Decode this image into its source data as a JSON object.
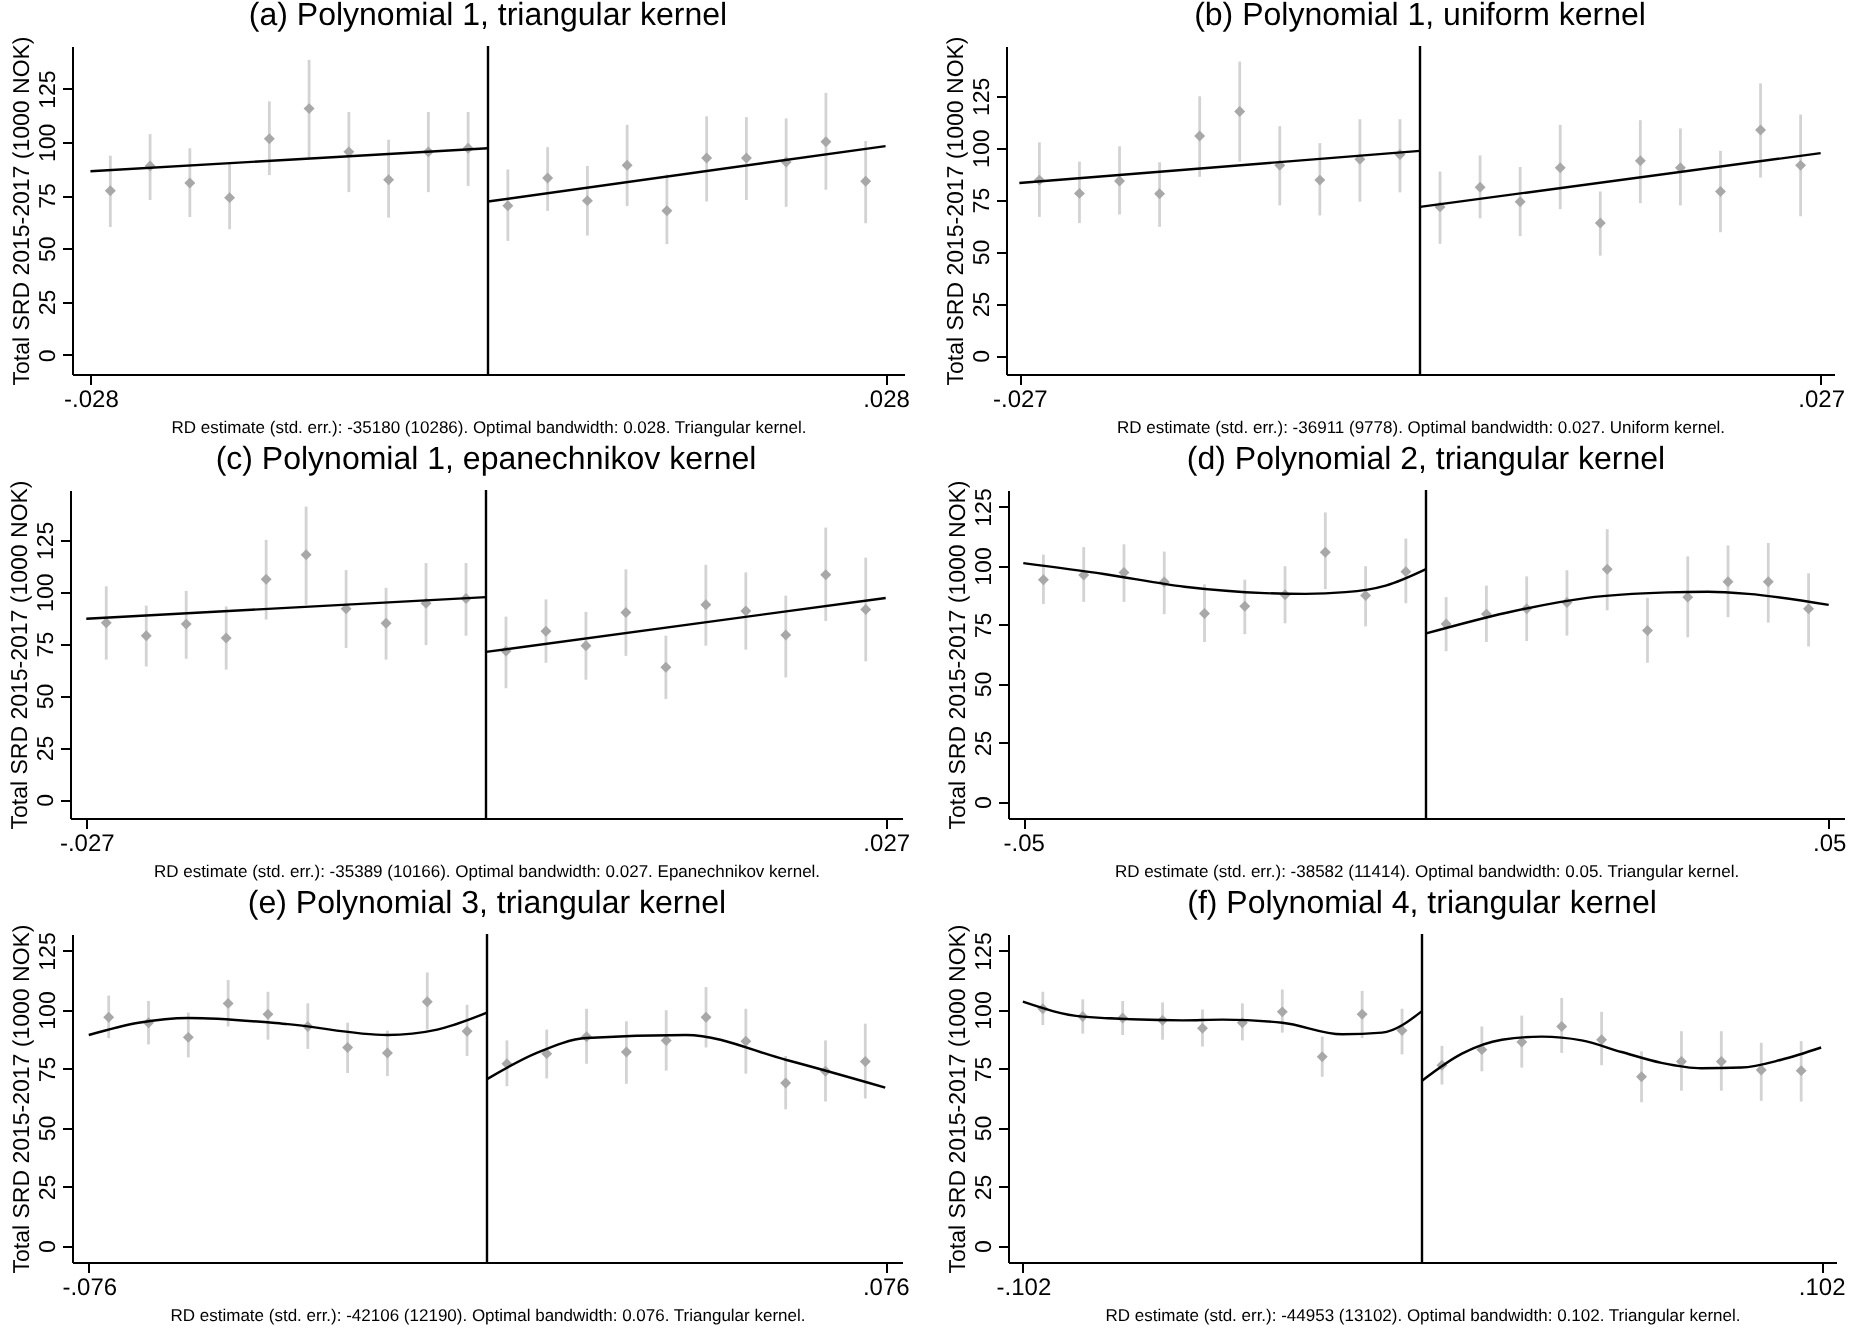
{
  "chart_data": [
    {
      "type": "scatter",
      "title": "(a) Polynomial 1, triangular kernel",
      "ylabel": "Total SRD 2015-2017 (1000 NOK)",
      "annotations": [
        "RD estimate (std. err.): -35180 (10286). Optimal bandwidth: 0.028. Triangular kernel."
      ],
      "xlim": [
        -0.0293,
        0.0293
      ],
      "xticks": [
        {
          "value": -0.028,
          "label": "-.028"
        },
        {
          "value": 0.028,
          "label": ".028"
        }
      ],
      "ylim": [
        -9,
        145
      ],
      "yticks": [
        0,
        25,
        50,
        75,
        100,
        125
      ],
      "ref_lines": [
        {
          "axis": "x",
          "value": 0,
          "color": "#000000"
        }
      ],
      "series": [
        {
          "type": "scatter",
          "color": "#a8a8a8",
          "marker": "diamond",
          "x": [
            -0.0266,
            -0.0238,
            -0.021,
            -0.0182,
            -0.0154,
            -0.0126,
            -0.0098,
            -0.007,
            -0.0042,
            -0.0014,
            0.0014,
            0.0042,
            0.007,
            0.0098,
            0.0126,
            0.0154,
            0.0182,
            0.021,
            0.0238,
            0.0266
          ],
          "values": [
            77,
            88.7,
            80.7,
            73.8,
            101.5,
            115.6,
            95.3,
            82.2,
            95.3,
            97,
            70,
            83,
            72.4,
            89,
            67.6,
            92.4,
            92.4,
            90.5,
            100,
            81.5
          ],
          "errors": [
            [
              60,
              93.5
            ],
            [
              72.7,
              103.6
            ],
            [
              64.7,
              97
            ],
            [
              59,
              90
            ],
            [
              84.4,
              119
            ],
            [
              92,
              138.5
            ],
            [
              76.4,
              114
            ],
            [
              64.4,
              101
            ],
            [
              76.4,
              114
            ],
            [
              79.3,
              114
            ],
            [
              53.5,
              87
            ],
            [
              67.6,
              97.5
            ],
            [
              56,
              88.7
            ],
            [
              69.8,
              108
            ],
            [
              52,
              84.7
            ],
            [
              72,
              112
            ],
            [
              72.7,
              111.6
            ],
            [
              69.5,
              111
            ],
            [
              77.5,
              123
            ],
            [
              61.8,
              100.4
            ]
          ]
        },
        {
          "type": "line",
          "marker": "none",
          "color": "#000000",
          "x": [
            -0.028,
            0
          ],
          "values": [
            86.2,
            97
          ]
        },
        {
          "type": "line",
          "marker": "none",
          "color": "#000000",
          "x": [
            0,
            0.028
          ],
          "values": [
            72,
            98
          ]
        }
      ]
    },
    {
      "type": "scatter",
      "title": "(b) Polynomial 1, uniform kernel",
      "ylabel": "Total SRD 2015-2017 (1000 NOK)",
      "annotations": [
        "RD estimate (std. err.): -36911 (9778). Optimal bandwidth: 0.027. Uniform kernel."
      ],
      "xlim": [
        -0.0279,
        0.0279
      ],
      "xticks": [
        {
          "value": -0.027,
          "label": "-.027"
        },
        {
          "value": 0.027,
          "label": ".027"
        }
      ],
      "ylim": [
        -9,
        149
      ],
      "yticks": [
        0,
        25,
        50,
        75,
        100,
        125
      ],
      "ref_lines": [
        {
          "axis": "x",
          "value": 0,
          "color": "#000000"
        }
      ],
      "series": [
        {
          "type": "scatter",
          "color": "#a8a8a8",
          "marker": "diamond",
          "x": [
            -0.02565,
            -0.02295,
            -0.02025,
            -0.01755,
            -0.01485,
            -0.01215,
            -0.00945,
            -0.00675,
            -0.00405,
            -0.00135,
            0.00135,
            0.00405,
            0.00675,
            0.00945,
            0.01215,
            0.01485,
            0.01755,
            0.02025,
            0.02295,
            0.02565
          ],
          "values": [
            84.4,
            78,
            84,
            77.8,
            105.6,
            117.4,
            91.5,
            84.4,
            94.4,
            96.7,
            71.5,
            81,
            74,
            90.4,
            63.7,
            93.7,
            90.4,
            78.9,
            108.5,
            91.5
          ],
          "errors": [
            [
              66.7,
              102.6
            ],
            [
              63.7,
              93.3
            ],
            [
              67.8,
              100.7
            ],
            [
              61.9,
              93
            ],
            [
              86,
              124.8
            ],
            [
              93.3,
              141.5
            ],
            [
              72.2,
              110.4
            ],
            [
              67.4,
              102.2
            ],
            [
              74,
              113.7
            ],
            [
              78.5,
              113.7
            ],
            [
              53.7,
              88.5
            ],
            [
              66,
              96.3
            ],
            [
              57.4,
              90.7
            ],
            [
              70.4,
              111
            ],
            [
              48,
              78.9
            ],
            [
              73.3,
              113.3
            ],
            [
              72.2,
              109.3
            ],
            [
              59.3,
              98.5
            ],
            [
              85.6,
              131
            ],
            [
              67,
              116
            ]
          ]
        },
        {
          "type": "line",
          "marker": "none",
          "color": "#000000",
          "x": [
            -0.027,
            0
          ],
          "values": [
            83,
            98.5
          ]
        },
        {
          "type": "line",
          "marker": "none",
          "color": "#000000",
          "x": [
            0,
            0.027
          ],
          "values": [
            71.5,
            97.4
          ]
        }
      ]
    },
    {
      "type": "scatter",
      "title": "(c) Polynomial 1, epanechnikov kernel",
      "ylabel": "Total SRD 2015-2017 (1000 NOK)",
      "annotations": [
        "RD estimate (std. err.): -35389 (10166). Optimal bandwidth: 0.027. Epanechnikov kernel."
      ],
      "xlim": [
        -0.0281,
        0.0281
      ],
      "xticks": [
        {
          "value": -0.027,
          "label": "-.027"
        },
        {
          "value": 0.027,
          "label": ".027"
        }
      ],
      "ylim": [
        -9,
        149
      ],
      "yticks": [
        0,
        25,
        50,
        75,
        100,
        125
      ],
      "ref_lines": [
        {
          "axis": "x",
          "value": 0,
          "color": "#000000"
        }
      ],
      "series": [
        {
          "type": "scatter",
          "color": "#a8a8a8",
          "marker": "diamond",
          "x": [
            -0.02565,
            -0.02295,
            -0.02025,
            -0.01755,
            -0.01485,
            -0.01215,
            -0.00945,
            -0.00675,
            -0.00405,
            -0.00135,
            0.00135,
            0.00405,
            0.00675,
            0.00945,
            0.01215,
            0.01485,
            0.01755,
            0.02025,
            0.02295,
            0.02565
          ],
          "values": [
            85,
            78.8,
            84.4,
            77.7,
            106,
            117.8,
            91.8,
            84.8,
            94.4,
            96.7,
            71.4,
            81,
            74,
            90,
            63.6,
            93.7,
            90.7,
            79.2,
            108.2,
            91.4
          ],
          "errors": [
            [
              67.3,
              102.6
            ],
            [
              64,
              93.3
            ],
            [
              67.7,
              100.4
            ],
            [
              62.5,
              92.9
            ],
            [
              86.6,
              125
            ],
            [
              93.7,
              141
            ],
            [
              72.9,
              110.4
            ],
            [
              67.3,
              101.9
            ],
            [
              74.3,
              113.8
            ],
            [
              78.8,
              113.8
            ],
            [
              53.5,
              88
            ],
            [
              65.8,
              96.3
            ],
            [
              57.6,
              90.3
            ],
            [
              69.1,
              110.8
            ],
            [
              48.3,
              78.8
            ],
            [
              74,
              113
            ],
            [
              72.1,
              109.3
            ],
            [
              58.7,
              98.1
            ],
            [
              85.9,
              130.9
            ],
            [
              66.5,
              116.4
            ]
          ]
        },
        {
          "type": "line",
          "marker": "none",
          "color": "#000000",
          "x": [
            -0.027,
            0
          ],
          "values": [
            87,
            97.4
          ]
        },
        {
          "type": "line",
          "marker": "none",
          "color": "#000000",
          "x": [
            0,
            0.027
          ],
          "values": [
            71,
            97
          ]
        }
      ]
    },
    {
      "type": "scatter",
      "title": "(d) Polynomial 2, triangular kernel",
      "ylabel": "Total SRD 2015-2017 (1000 NOK)",
      "annotations": [
        "RD estimate (std. err.): -38582 (11414). Optimal bandwidth: 0.05. Triangular kernel."
      ],
      "xlim": [
        -0.0519,
        0.0519
      ],
      "xticks": [
        {
          "value": -0.05,
          "label": "-.05"
        },
        {
          "value": 0.05,
          "label": ".05"
        }
      ],
      "ylim": [
        -7,
        132
      ],
      "yticks": [
        0,
        25,
        50,
        75,
        100,
        125
      ],
      "ref_lines": [
        {
          "axis": "x",
          "value": 0,
          "color": "#000000"
        }
      ],
      "series": [
        {
          "type": "scatter",
          "color": "#a8a8a8",
          "marker": "diamond",
          "x": [
            -0.0475,
            -0.0425,
            -0.0375,
            -0.0325,
            -0.0275,
            -0.0225,
            -0.0175,
            -0.0125,
            -0.0075,
            -0.0025,
            0.0025,
            0.0075,
            0.0125,
            0.0175,
            0.0225,
            0.0275,
            0.0325,
            0.0375,
            0.0425,
            0.0475
          ],
          "values": [
            94,
            96,
            97,
            93,
            79.7,
            82.7,
            87.6,
            105.6,
            87.3,
            97.4,
            75.2,
            79.4,
            81.7,
            84.3,
            98.4,
            72.5,
            86.6,
            93.1,
            93.1,
            81.7
          ],
          "errors": [
            [
              83.7,
              104.6
            ],
            [
              84.6,
              107.8
            ],
            [
              84.6,
              109
            ],
            [
              79.4,
              105.9
            ],
            [
              67.6,
              92
            ],
            [
              70.9,
              94
            ],
            [
              75.5,
              99.7
            ],
            [
              90,
              122.5
            ],
            [
              74.2,
              99.7
            ],
            [
              84,
              111.4
            ],
            [
              63.7,
              86.6
            ],
            [
              67.6,
              91.5
            ],
            [
              68,
              95.4
            ],
            [
              70.3,
              98
            ],
            [
              81,
              115.4
            ],
            [
              58.8,
              86.3
            ],
            [
              69.6,
              103.9
            ],
            [
              78.1,
              108.5
            ],
            [
              75.8,
              109.5
            ],
            [
              65.7,
              96.7
            ]
          ]
        },
        {
          "type": "line",
          "marker": "none",
          "color": "#000000",
          "x": [
            -0.05,
            -0.04,
            -0.03,
            -0.02,
            -0.015,
            -0.01,
            -0.005,
            0
          ],
          "values": [
            101,
            96.4,
            91,
            88.3,
            88,
            88.7,
            91.5,
            98.5
          ]
        },
        {
          "type": "line",
          "marker": "none",
          "color": "#000000",
          "x": [
            0,
            0.01,
            0.02,
            0.03,
            0.035,
            0.04,
            0.05
          ],
          "values": [
            71.2,
            80,
            86.3,
            88.6,
            88.9,
            88,
            83.3
          ]
        }
      ]
    },
    {
      "type": "scatter",
      "title": "(e) Polynomial 3, triangular kernel",
      "ylabel": "Total SRD 2015-2017 (1000 NOK)",
      "annotations": [
        "RD estimate (std. err.): -42106 (12190). Optimal bandwidth: 0.076. Triangular kernel."
      ],
      "xlim": [
        -0.0792,
        0.0792
      ],
      "xticks": [
        {
          "value": -0.076,
          "label": "-.076"
        },
        {
          "value": 0.076,
          "label": ".076"
        }
      ],
      "ylim": [
        -7,
        132
      ],
      "yticks": [
        0,
        25,
        50,
        75,
        100,
        125
      ],
      "ref_lines": [
        {
          "axis": "x",
          "value": 0,
          "color": "#000000"
        }
      ],
      "series": [
        {
          "type": "scatter",
          "color": "#a8a8a8",
          "marker": "diamond",
          "x": [
            -0.0722,
            -0.0646,
            -0.057,
            -0.0494,
            -0.0418,
            -0.0342,
            -0.0266,
            -0.019,
            -0.0114,
            -0.0038,
            0.0038,
            0.0114,
            0.019,
            0.0266,
            0.0342,
            0.0418,
            0.0494,
            0.057,
            0.0646,
            0.0722
          ],
          "values": [
            96.7,
            94.4,
            88.2,
            102.6,
            98,
            92.8,
            83.9,
            81.6,
            103.3,
            90.8,
            77,
            81.3,
            88.5,
            82,
            86.9,
            96.7,
            86.6,
            68.9,
            73.8,
            78
          ],
          "errors": [
            [
              87.9,
              105.9
            ],
            [
              85.2,
              103.6
            ],
            [
              79.7,
              98.7
            ],
            [
              92.8,
              112.5
            ],
            [
              87.2,
              107.5
            ],
            [
              83.3,
              102.6
            ],
            [
              73.1,
              94.4
            ],
            [
              71.8,
              91.1
            ],
            [
              91.5,
              115.7
            ],
            [
              80.3,
              102
            ],
            [
              67.5,
              86.9
            ],
            [
              70.8,
              91.5
            ],
            [
              77,
              100.3
            ],
            [
              68.5,
              95
            ],
            [
              74.1,
              99.7
            ],
            [
              83.9,
              109.5
            ],
            [
              72.8,
              100.3
            ],
            [
              57.7,
              80.3
            ],
            [
              61,
              86.9
            ],
            [
              62.3,
              94
            ]
          ]
        },
        {
          "type": "line",
          "marker": "none",
          "color": "#000000",
          "x": [
            -0.076,
            -0.0665,
            -0.057,
            -0.038,
            -0.019,
            -0.0095,
            0
          ],
          "values": [
            89.2,
            94.4,
            96.4,
            93.8,
            89.2,
            91.5,
            98.7
          ]
        },
        {
          "type": "line",
          "marker": "none",
          "color": "#000000",
          "x": [
            0,
            0.0095,
            0.019,
            0.038,
            0.057,
            0.076
          ],
          "values": [
            70.5,
            81.6,
            87.9,
            89.2,
            78.7,
            66.9
          ]
        }
      ]
    },
    {
      "type": "scatter",
      "title": "(f) Polynomial 4, triangular kernel",
      "ylabel": "Total SRD 2015-2017 (1000 NOK)",
      "annotations": [
        "RD estimate (std. err.): -44953 (13102). Optimal bandwidth: 0.102. Triangular kernel."
      ],
      "xlim": [
        -0.1058,
        0.1058
      ],
      "xticks": [
        {
          "value": -0.102,
          "label": "-.102"
        },
        {
          "value": 0.102,
          "label": ".102"
        }
      ],
      "ylim": [
        -7,
        132
      ],
      "yticks": [
        0,
        25,
        50,
        75,
        100,
        125
      ],
      "ref_lines": [
        {
          "axis": "x",
          "value": 0,
          "color": "#000000"
        }
      ],
      "series": [
        {
          "type": "scatter",
          "color": "#a8a8a8",
          "marker": "diamond",
          "x": [
            -0.0969,
            -0.0867,
            -0.0765,
            -0.0663,
            -0.0561,
            -0.0459,
            -0.0357,
            -0.0255,
            -0.0153,
            -0.0051,
            0.0051,
            0.0153,
            0.0255,
            0.0357,
            0.0459,
            0.0561,
            0.0663,
            0.0765,
            0.0867,
            0.0969
          ],
          "values": [
            100.3,
            97,
            96.4,
            95.4,
            92.1,
            94.4,
            99,
            80,
            98,
            91.1,
            76.4,
            83,
            86.2,
            92.8,
            87.2,
            71.5,
            78,
            78,
            74.4,
            74.1
          ],
          "errors": [
            [
              93.4,
              107.5
            ],
            [
              89.8,
              104.3
            ],
            [
              89.2,
              103.6
            ],
            [
              87.2,
              103
            ],
            [
              84.3,
              100
            ],
            [
              86.9,
              102.6
            ],
            [
              90.2,
              108.5
            ],
            [
              71.5,
              88.5
            ],
            [
              87.9,
              107.9
            ],
            [
              81,
              100.3
            ],
            [
              68.2,
              84.6
            ],
            [
              73.8,
              92.8
            ],
            [
              75.4,
              97.4
            ],
            [
              81.6,
              104.9
            ],
            [
              76.4,
              99
            ],
            [
              60.7,
              82.3
            ],
            [
              65.6,
              90.8
            ],
            [
              65.6,
              90.8
            ],
            [
              61.3,
              85.9
            ],
            [
              61,
              86.6
            ]
          ]
        },
        {
          "type": "line",
          "marker": "none",
          "color": "#000000",
          "x": [
            -0.102,
            -0.0867,
            -0.0612,
            -0.051,
            -0.0357,
            -0.0204,
            -0.0102,
            0
          ],
          "values": [
            103.3,
            97,
            95.4,
            95.7,
            94.4,
            89.5,
            90.2,
            99.3
          ]
        },
        {
          "type": "line",
          "marker": "none",
          "color": "#000000",
          "x": [
            0,
            0.0102,
            0.0204,
            0.0306,
            0.0408,
            0.051,
            0.0612,
            0.0714,
            0.0816,
            0.0918,
            0.102
          ],
          "values": [
            69.8,
            81.3,
            87.2,
            88.5,
            86.9,
            82,
            77.4,
            75.1,
            75.4,
            78.7,
            83.9
          ]
        }
      ]
    }
  ]
}
